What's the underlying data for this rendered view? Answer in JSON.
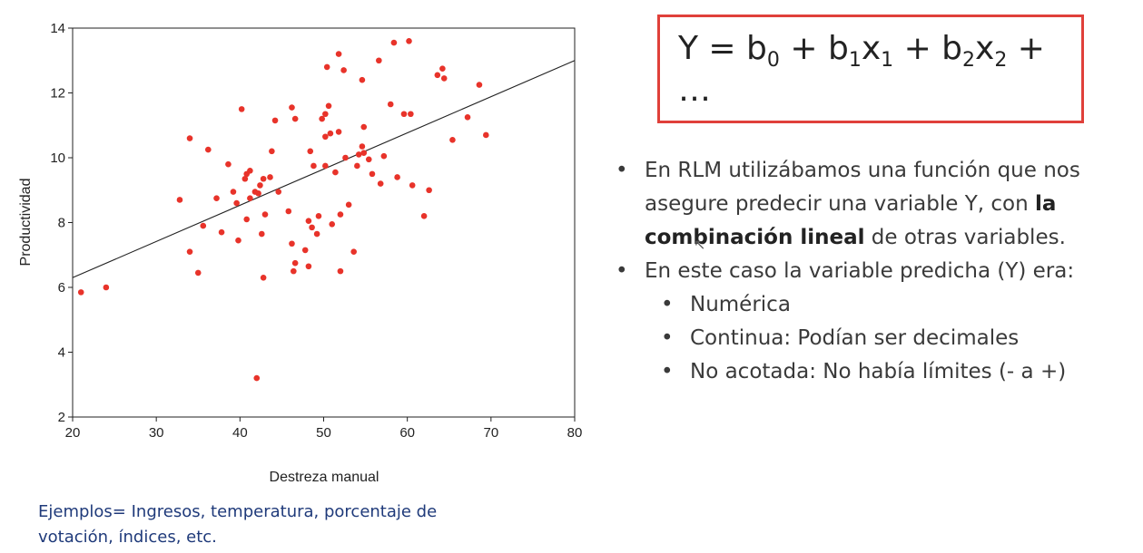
{
  "formula": {
    "y": "Y = b",
    "s0": "0",
    "p1": " + b",
    "s1": "1",
    "x1": "x",
    "s1b": "1",
    "p2": " + b",
    "s2": "2",
    "x2": "x",
    "s2b": "2",
    "tail": " + …"
  },
  "bullets": {
    "b1_pre": "En RLM utilizábamos una función que nos asegure predecir una variable Y, con ",
    "b1_bold": "la combinación lineal",
    "b1_post": " de otras variables.",
    "b2": "En este caso la variable predicha (Y) era:",
    "sub": [
      "Numérica",
      "Continua: Podían ser decimales",
      "No acotada: No había límites (- a +)"
    ]
  },
  "footnote": "Ejemplos= Ingresos, temperatura, porcentaje de votación, índices, etc.",
  "colors": {
    "points": "#e8332a",
    "box_border": "#e0403a",
    "footnote": "#1f3a7a"
  },
  "chart_data": {
    "type": "scatter",
    "xlabel": "Destreza manual",
    "ylabel": "Productividad",
    "xlim": [
      20,
      80
    ],
    "ylim": [
      2,
      14
    ],
    "xticks": [
      20,
      30,
      40,
      50,
      60,
      70,
      80
    ],
    "yticks": [
      2,
      4,
      6,
      8,
      10,
      12,
      14
    ],
    "grid": false,
    "fit_line": {
      "x": [
        20,
        80
      ],
      "y": [
        6.3,
        13.0
      ]
    },
    "points": [
      [
        21,
        5.85
      ],
      [
        24,
        6.0
      ],
      [
        32.8,
        8.7
      ],
      [
        34,
        10.6
      ],
      [
        34,
        7.1
      ],
      [
        35,
        6.45
      ],
      [
        35.6,
        7.9
      ],
      [
        36.2,
        10.25
      ],
      [
        37.2,
        8.75
      ],
      [
        37.8,
        7.7
      ],
      [
        38.6,
        9.8
      ],
      [
        39.2,
        8.95
      ],
      [
        39.6,
        8.6
      ],
      [
        39.8,
        7.45
      ],
      [
        40.2,
        11.5
      ],
      [
        40.6,
        9.35
      ],
      [
        40.8,
        8.1
      ],
      [
        40.8,
        9.5
      ],
      [
        41.2,
        9.6
      ],
      [
        41.2,
        8.75
      ],
      [
        41.8,
        8.95
      ],
      [
        42,
        3.2
      ],
      [
        42.2,
        8.9
      ],
      [
        42.4,
        9.15
      ],
      [
        42.6,
        7.65
      ],
      [
        42.8,
        9.35
      ],
      [
        42.8,
        6.3
      ],
      [
        43,
        8.25
      ],
      [
        43.6,
        9.4
      ],
      [
        43.8,
        10.2
      ],
      [
        44.2,
        11.15
      ],
      [
        44.6,
        8.95
      ],
      [
        45.8,
        8.35
      ],
      [
        46.2,
        11.55
      ],
      [
        46.2,
        7.35
      ],
      [
        46.4,
        6.5
      ],
      [
        46.6,
        11.2
      ],
      [
        46.6,
        6.75
      ],
      [
        47.8,
        7.15
      ],
      [
        48.2,
        6.65
      ],
      [
        48.2,
        8.05
      ],
      [
        48.4,
        10.2
      ],
      [
        48.6,
        7.85
      ],
      [
        48.8,
        9.75
      ],
      [
        49.2,
        7.65
      ],
      [
        49.4,
        8.2
      ],
      [
        49.8,
        11.2
      ],
      [
        50.2,
        11.35
      ],
      [
        50.2,
        9.75
      ],
      [
        50.2,
        10.65
      ],
      [
        50.4,
        12.8
      ],
      [
        50.6,
        11.6
      ],
      [
        50.8,
        10.75
      ],
      [
        51,
        7.95
      ],
      [
        51.4,
        9.55
      ],
      [
        51.8,
        10.8
      ],
      [
        51.8,
        13.2
      ],
      [
        52,
        8.25
      ],
      [
        52,
        6.5
      ],
      [
        52.4,
        12.7
      ],
      [
        52.6,
        10.0
      ],
      [
        53,
        8.55
      ],
      [
        53.6,
        7.1
      ],
      [
        54,
        9.75
      ],
      [
        54.2,
        10.1
      ],
      [
        54.6,
        10.35
      ],
      [
        54.6,
        12.4
      ],
      [
        54.8,
        10.95
      ],
      [
        54.8,
        10.15
      ],
      [
        55.4,
        9.95
      ],
      [
        55.8,
        9.5
      ],
      [
        56.6,
        13.0
      ],
      [
        56.8,
        9.2
      ],
      [
        57.2,
        10.05
      ],
      [
        58,
        11.65
      ],
      [
        58.4,
        13.55
      ],
      [
        58.8,
        9.4
      ],
      [
        59.6,
        11.35
      ],
      [
        60.2,
        13.6
      ],
      [
        60.4,
        11.35
      ],
      [
        60.6,
        9.15
      ],
      [
        62,
        8.2
      ],
      [
        62.6,
        9.0
      ],
      [
        63.6,
        12.55
      ],
      [
        64.2,
        12.75
      ],
      [
        64.4,
        12.45
      ],
      [
        65.4,
        10.55
      ],
      [
        67.2,
        11.25
      ],
      [
        68.6,
        12.25
      ],
      [
        69.4,
        10.7
      ]
    ]
  }
}
